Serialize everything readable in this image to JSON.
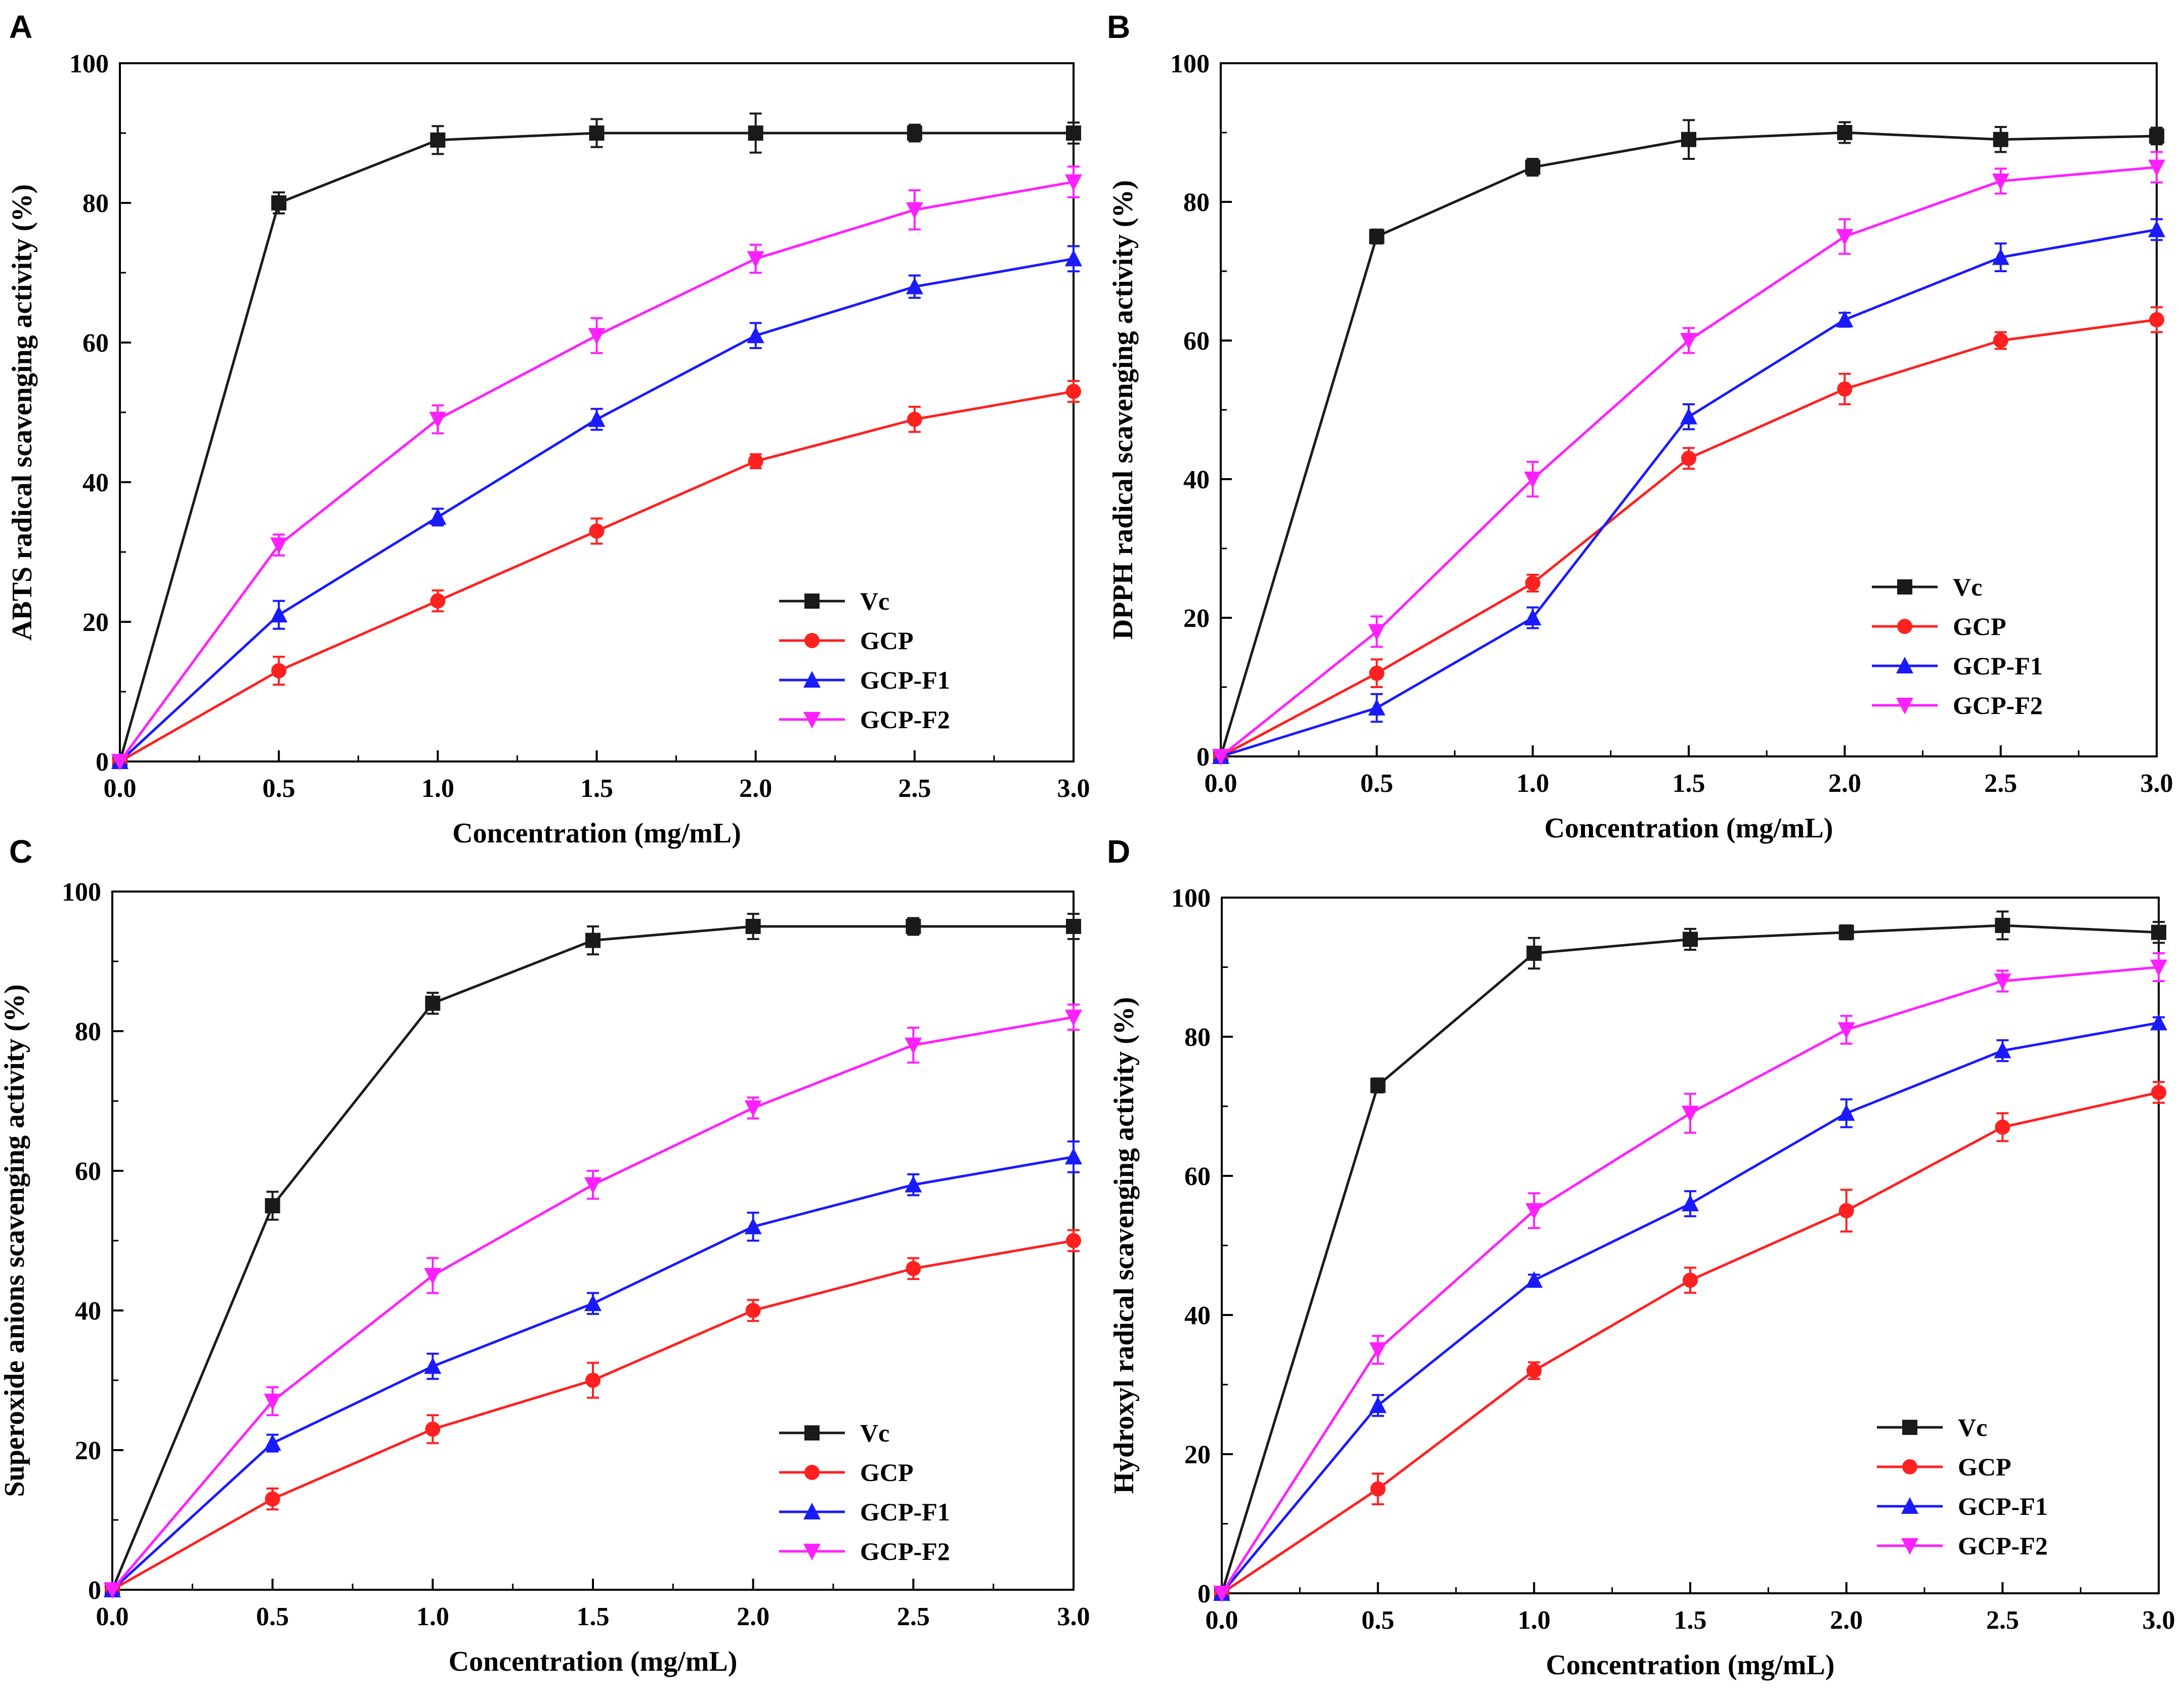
{
  "chart_data": [
    {
      "type": "line",
      "panel_label": "A",
      "xlabel": "Concentration (mg/mL)",
      "ylabel": "ABTS radical scavenging activity (%)",
      "xlim": [
        0,
        3.0
      ],
      "ylim": [
        0,
        100
      ],
      "xticks": [
        "0.0",
        "0.5",
        "1.0",
        "1.5",
        "2.0",
        "2.5",
        "3.0"
      ],
      "yticks": [
        "0",
        "20",
        "40",
        "60",
        "80",
        "100"
      ],
      "legend_position": "bottom-right",
      "x": [
        0,
        0.5,
        1.0,
        1.5,
        2.0,
        2.5,
        3.0
      ],
      "series": [
        {
          "name": "Vc",
          "color": "#1a1a1a",
          "marker": "square",
          "values": [
            0,
            80,
            89,
            90,
            90,
            90,
            90
          ],
          "errors": [
            0,
            1.5,
            2,
            2,
            2.8,
            1.2,
            1.5
          ]
        },
        {
          "name": "GCP",
          "color": "#ff2020",
          "marker": "circle",
          "values": [
            0,
            13,
            23,
            33,
            43,
            49,
            53
          ],
          "errors": [
            0,
            2,
            1.5,
            1.8,
            1,
            1.8,
            1.5
          ]
        },
        {
          "name": "GCP-F1",
          "color": "#1a1aff",
          "marker": "triangle-up",
          "values": [
            0,
            21,
            35,
            49,
            61,
            68,
            72
          ],
          "errors": [
            0,
            2,
            1.2,
            1.5,
            1.8,
            1.6,
            1.8
          ]
        },
        {
          "name": "GCP-F2",
          "color": "#ff20ff",
          "marker": "triangle-down",
          "values": [
            0,
            31,
            49,
            61,
            72,
            79,
            83
          ],
          "errors": [
            0,
            1.5,
            2,
            2.5,
            2,
            2.8,
            2.2
          ]
        }
      ]
    },
    {
      "type": "line",
      "panel_label": "B",
      "xlabel": "Concentration (mg/mL)",
      "ylabel": "DPPH radical scavenging activity (%)",
      "xlim": [
        0,
        3.0
      ],
      "ylim": [
        0,
        100
      ],
      "xticks": [
        "0.0",
        "0.5",
        "1.0",
        "1.5",
        "2.0",
        "2.5",
        "3.0"
      ],
      "yticks": [
        "0",
        "20",
        "40",
        "60",
        "80",
        "100"
      ],
      "legend_position": "bottom-right",
      "x": [
        0,
        0.5,
        1.0,
        1.5,
        2.0,
        2.5,
        3.0
      ],
      "series": [
        {
          "name": "Vc",
          "color": "#1a1a1a",
          "marker": "square",
          "values": [
            0,
            75,
            85,
            89,
            90,
            89,
            89.5
          ],
          "errors": [
            0,
            1,
            1.2,
            2.8,
            1.5,
            1.8,
            1.2
          ]
        },
        {
          "name": "GCP",
          "color": "#ff2020",
          "marker": "circle",
          "values": [
            0,
            12,
            25,
            43,
            53,
            60,
            63
          ],
          "errors": [
            0,
            2,
            1.2,
            1.5,
            2.2,
            1.2,
            1.8
          ]
        },
        {
          "name": "GCP-F1",
          "color": "#1a1aff",
          "marker": "triangle-up",
          "values": [
            0,
            7,
            20,
            49,
            63,
            72,
            76
          ],
          "errors": [
            0,
            2,
            1.5,
            1.8,
            1,
            2,
            1.5
          ]
        },
        {
          "name": "GCP-F2",
          "color": "#ff20ff",
          "marker": "triangle-down",
          "values": [
            0,
            18,
            40,
            60,
            75,
            83,
            85
          ],
          "errors": [
            0,
            2.2,
            2.5,
            1.8,
            2.5,
            1.8,
            2.2
          ]
        }
      ]
    },
    {
      "type": "line",
      "panel_label": "C",
      "xlabel": "Concentration (mg/mL)",
      "ylabel": "Superoxide anions scavenging activity (%)",
      "xlim": [
        0,
        3.0
      ],
      "ylim": [
        0,
        100
      ],
      "xticks": [
        "0.0",
        "0.5",
        "1.0",
        "1.5",
        "2.0",
        "2.5",
        "3.0"
      ],
      "yticks": [
        "0",
        "20",
        "40",
        "60",
        "80",
        "100"
      ],
      "legend_position": "bottom-right",
      "x": [
        0,
        0.5,
        1.0,
        1.5,
        2.0,
        2.5,
        3.0
      ],
      "series": [
        {
          "name": "Vc",
          "color": "#1a1a1a",
          "marker": "square",
          "values": [
            0,
            55,
            84,
            93,
            95,
            95,
            95
          ],
          "errors": [
            0,
            2,
            1.5,
            2,
            1.8,
            1.2,
            1.8
          ]
        },
        {
          "name": "GCP",
          "color": "#ff2020",
          "marker": "circle",
          "values": [
            0,
            13,
            23,
            30,
            40,
            46,
            50
          ],
          "errors": [
            0,
            1.5,
            2,
            2.5,
            1.5,
            1.5,
            1.5
          ]
        },
        {
          "name": "GCP-F1",
          "color": "#1a1aff",
          "marker": "triangle-up",
          "values": [
            0,
            21,
            32,
            41,
            52,
            58,
            62
          ],
          "errors": [
            0,
            1.2,
            1.8,
            1.5,
            2,
            1.5,
            2.2
          ]
        },
        {
          "name": "GCP-F2",
          "color": "#ff20ff",
          "marker": "triangle-down",
          "values": [
            0,
            27,
            45,
            58,
            69,
            78,
            82
          ],
          "errors": [
            0,
            2,
            2.5,
            2,
            1.5,
            2.5,
            1.8
          ]
        }
      ]
    },
    {
      "type": "line",
      "panel_label": "D",
      "xlabel": "Concentration (mg/mL)",
      "ylabel": "Hydroxyl radical scavenging activity (%)",
      "xlim": [
        0,
        3.0
      ],
      "ylim": [
        0,
        100
      ],
      "xticks": [
        "0.0",
        "0.5",
        "1.0",
        "1.5",
        "2.0",
        "2.5",
        "3.0"
      ],
      "yticks": [
        "0",
        "20",
        "40",
        "60",
        "80",
        "100"
      ],
      "legend_position": "bottom-right",
      "x": [
        0,
        0.5,
        1.0,
        1.5,
        2.0,
        2.5,
        3.0
      ],
      "series": [
        {
          "name": "Vc",
          "color": "#1a1a1a",
          "marker": "square",
          "values": [
            0,
            73,
            92,
            94,
            95,
            96,
            95
          ],
          "errors": [
            0,
            1,
            2.2,
            1.5,
            1,
            2,
            1.5
          ]
        },
        {
          "name": "GCP",
          "color": "#ff2020",
          "marker": "circle",
          "values": [
            0,
            15,
            32,
            45,
            55,
            67,
            72
          ],
          "errors": [
            0,
            2.2,
            1.2,
            1.8,
            3,
            2,
            1.5
          ]
        },
        {
          "name": "GCP-F1",
          "color": "#1a1aff",
          "marker": "triangle-up",
          "values": [
            0,
            27,
            45,
            56,
            69,
            78,
            82
          ],
          "errors": [
            0,
            1.5,
            0.8,
            1.8,
            2,
            1.5,
            0.8
          ]
        },
        {
          "name": "GCP-F2",
          "color": "#ff20ff",
          "marker": "triangle-down",
          "values": [
            0,
            35,
            55,
            69,
            81,
            88,
            90
          ],
          "errors": [
            0,
            2,
            2.5,
            2.8,
            2,
            1.5,
            2
          ]
        }
      ]
    }
  ]
}
